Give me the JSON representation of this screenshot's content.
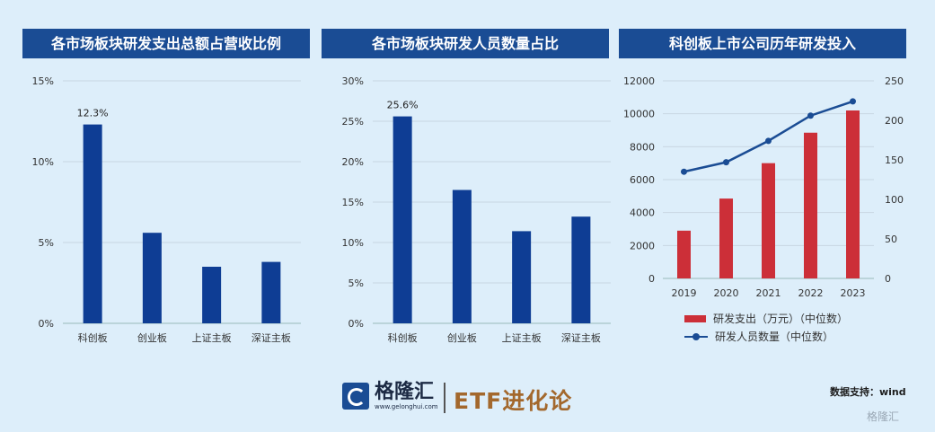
{
  "charts": [
    {
      "type": "bar",
      "title": "各市场板块研发支出总额占营收比例",
      "categories": [
        "科创板",
        "创业板",
        "上证主板",
        "深证主板"
      ],
      "values": [
        12.3,
        5.6,
        3.5,
        3.8
      ],
      "value_labels": [
        "12.3%",
        "",
        "",
        ""
      ],
      "ylim": [
        0,
        15
      ],
      "yticks": [
        "0%",
        "5%",
        "10%",
        "15%"
      ],
      "bar_color": "#0e3d94",
      "grid": true
    },
    {
      "type": "bar",
      "title": "各市场板块研发人员数量占比",
      "categories": [
        "科创板",
        "创业板",
        "上证主板",
        "深证主板"
      ],
      "values": [
        25.6,
        16.5,
        11.4,
        13.2
      ],
      "value_labels": [
        "25.6%",
        "",
        "",
        ""
      ],
      "ylim": [
        0,
        30
      ],
      "yticks": [
        "0%",
        "5%",
        "10%",
        "15%",
        "20%",
        "25%",
        "30%"
      ],
      "bar_color": "#0e3d94",
      "grid": true
    },
    {
      "type": "bar+line",
      "title": "科创板上市公司历年研发投入",
      "categories": [
        "2019",
        "2020",
        "2021",
        "2022",
        "2023"
      ],
      "series": [
        {
          "name": "研发支出（万元）（中位数）",
          "type": "bar",
          "axis": "left",
          "values": [
            2900,
            4850,
            7000,
            8850,
            10200
          ],
          "color": "#cc2f38"
        },
        {
          "name": "研发人员数量（中位数）",
          "type": "line",
          "axis": "right",
          "values": [
            135,
            147,
            174,
            206,
            224
          ],
          "color": "#1a4c94"
        }
      ],
      "ylim_left": [
        0,
        12000
      ],
      "yticks_left": [
        "0",
        "2000",
        "4000",
        "6000",
        "8000",
        "10000",
        "12000"
      ],
      "ylim_right": [
        0,
        250
      ],
      "yticks_right": [
        "0",
        "50",
        "100",
        "150",
        "200",
        "250"
      ],
      "legend_position": "bottom",
      "grid": true
    }
  ],
  "footer": {
    "logo_text": "格隆汇",
    "logo_url": "www.gelonghui.com",
    "brand": "ETF进化论",
    "source": "数据支持：wind",
    "watermark": "格隆汇"
  }
}
